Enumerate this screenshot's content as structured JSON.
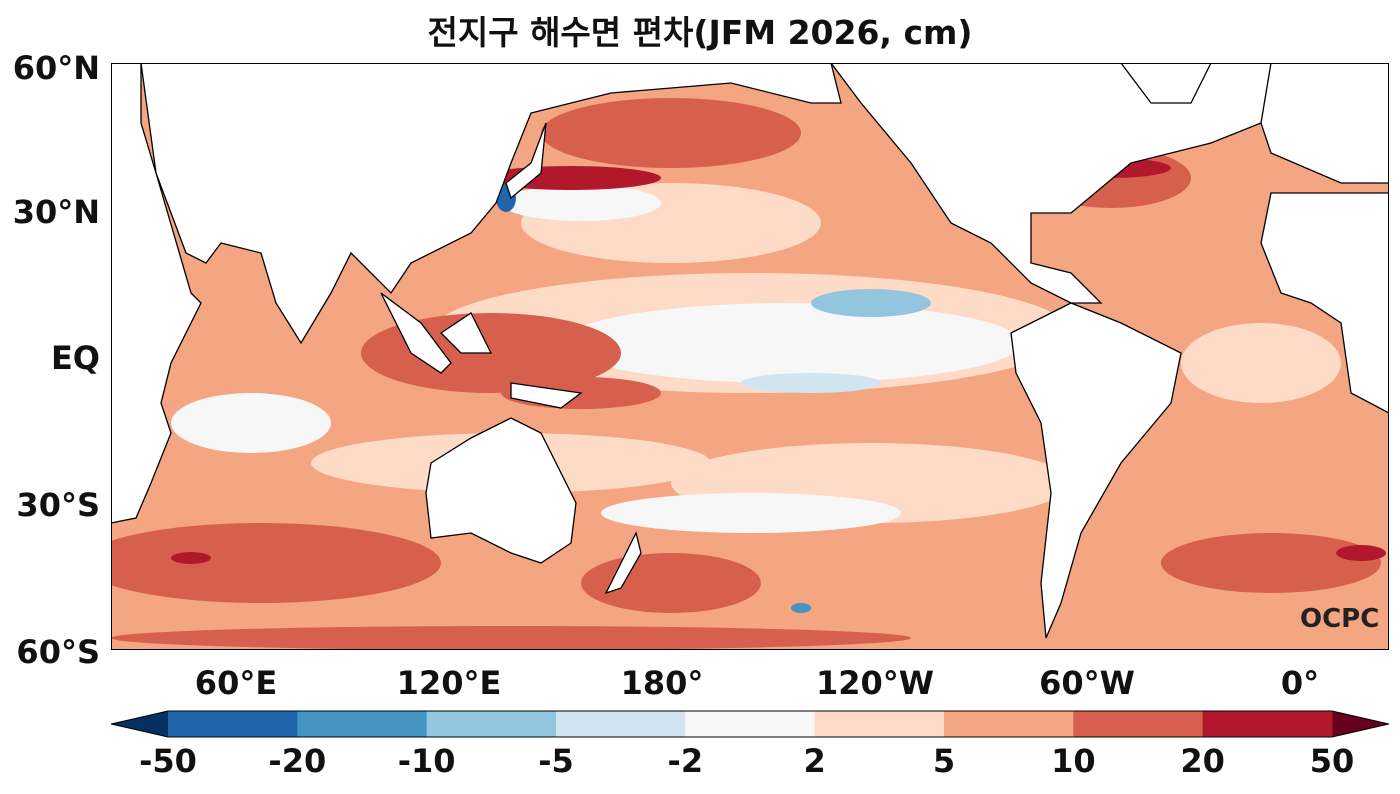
{
  "title": "전지구 해수면 편차(JFM 2026, cm)",
  "lat_labels": [
    "60°N",
    "30°N",
    "EQ",
    "30°S",
    "60°S"
  ],
  "lon_labels": [
    "60°E",
    "120°E",
    "180°",
    "120°W",
    "60°W",
    "0°"
  ],
  "credit": "OCPC",
  "colorbar": {
    "ticks": [
      "-50",
      "-20",
      "-10",
      "-5",
      "-2",
      "2",
      "5",
      "10",
      "20",
      "50"
    ],
    "colors": [
      "#2166ac",
      "#4393c3",
      "#92c5de",
      "#d1e5f0",
      "#f7f7f7",
      "#fddbc7",
      "#f4a582",
      "#d6604d",
      "#b2182b"
    ],
    "extend_low": "#053061",
    "extend_high": "#67001f"
  }
}
